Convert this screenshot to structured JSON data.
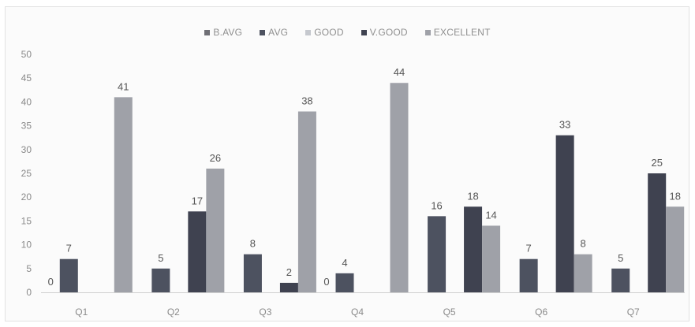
{
  "chart_data": {
    "type": "bar",
    "title": "",
    "xlabel": "",
    "ylabel": "",
    "categories": [
      "Q1",
      "Q2",
      "Q3",
      "Q4",
      "Q5",
      "Q6",
      "Q7"
    ],
    "ylim": [
      0,
      50
    ],
    "yticks": [
      "0",
      "5",
      "10",
      "15",
      "20",
      "25",
      "30",
      "35",
      "40",
      "45",
      "50"
    ],
    "legend_position": "top-center",
    "grid": false,
    "series": [
      {
        "name": "B.AVG",
        "color": "#6f6f75",
        "values": [
          0,
          null,
          null,
          0,
          null,
          null,
          null
        ],
        "labels": [
          "0",
          "",
          "",
          "0",
          "",
          "",
          ""
        ]
      },
      {
        "name": "AVG",
        "color": "#4d5260",
        "values": [
          7,
          5,
          8,
          4,
          16,
          7,
          5
        ],
        "labels": [
          "7",
          "5",
          "8",
          "4",
          "16",
          "7",
          "5"
        ]
      },
      {
        "name": "GOOD",
        "color": "#c5c8ce",
        "values": [
          null,
          null,
          null,
          null,
          null,
          null,
          null
        ],
        "labels": [
          "",
          "",
          "",
          "",
          "",
          "",
          ""
        ]
      },
      {
        "name": "V.GOOD",
        "color": "#3f4250",
        "values": [
          null,
          17,
          2,
          null,
          18,
          33,
          25
        ],
        "labels": [
          "",
          "17",
          "2",
          "",
          "18",
          "33",
          "25"
        ]
      },
      {
        "name": "EXCELLENT",
        "color": "#9fa1a8",
        "values": [
          41,
          26,
          38,
          44,
          14,
          8,
          18
        ],
        "labels": [
          "41",
          "26",
          "38",
          "44",
          "14",
          "8",
          "18"
        ]
      }
    ]
  }
}
